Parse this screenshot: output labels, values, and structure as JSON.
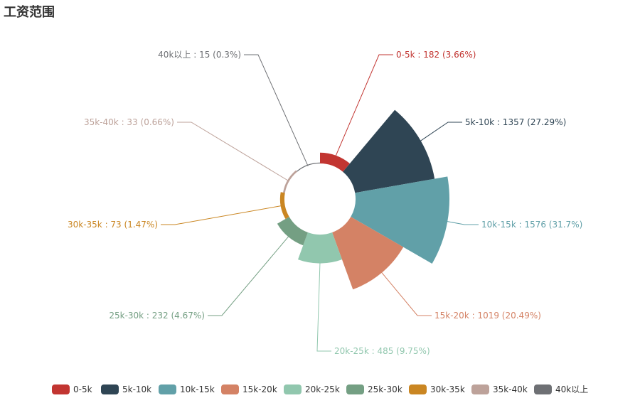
{
  "chart_data": {
    "type": "pie",
    "subtype": "rose",
    "title": "工资范围",
    "categories": [
      "0-5k",
      "5k-10k",
      "10k-15k",
      "15k-20k",
      "20k-25k",
      "25k-30k",
      "30k-35k",
      "35k-40k",
      "40k以上"
    ],
    "values": [
      182,
      1357,
      1576,
      1019,
      485,
      232,
      73,
      33,
      15
    ],
    "percents": [
      "3.66%",
      "27.29%",
      "31.7%",
      "20.49%",
      "9.75%",
      "4.67%",
      "1.47%",
      "0.66%",
      "0.3%"
    ],
    "labels": [
      "0-5k : 182 (3.66%)",
      "5k-10k : 1357 (27.29%)",
      "10k-15k : 1576 (31.7%)",
      "15k-20k : 1019 (20.49%)",
      "20k-25k : 485 (9.75%)",
      "25k-30k : 232 (4.67%)",
      "30k-35k : 73 (1.47%)",
      "35k-40k : 33 (0.66%)",
      "40k以上 : 15 (0.3%)"
    ],
    "colors": [
      "#c23531",
      "#2f4554",
      "#61a0a8",
      "#d48265",
      "#91c7ae",
      "#749f83",
      "#ca8622",
      "#bda29a",
      "#6e7074"
    ],
    "legend_position": "bottom"
  }
}
